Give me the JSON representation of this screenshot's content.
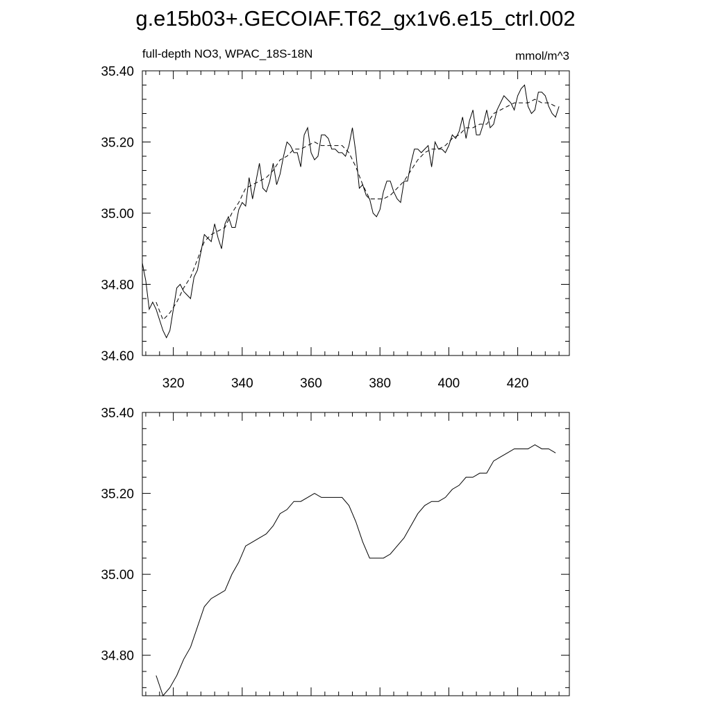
{
  "chart_data": [
    {
      "type": "line",
      "title": "g.e15b03+.GECOIAF.T62_gx1v6.e15_ctrl.002",
      "subtitle": "full-depth NO3, WPAC_18S-18N",
      "units": "mmol/m^3",
      "xlim": [
        311,
        435
      ],
      "ylim": [
        34.6,
        35.4
      ],
      "xticks": [
        320,
        340,
        360,
        380,
        400,
        420
      ],
      "xtick_labels": true,
      "yticks": [
        {
          "value": 34.6,
          "label": "34.60"
        },
        {
          "value": 34.8,
          "label": "34.80"
        },
        {
          "value": 35.0,
          "label": "35.00"
        },
        {
          "value": 35.2,
          "label": "35.20"
        },
        {
          "value": 35.4,
          "label": "35.40"
        }
      ],
      "series": [
        {
          "color": "#000000",
          "dash": false,
          "x": [
            311,
            312,
            313,
            314,
            315,
            316,
            317,
            318,
            319,
            320,
            321,
            322,
            323,
            324,
            325,
            326,
            327,
            328,
            329,
            330,
            331,
            332,
            333,
            334,
            335,
            336,
            337,
            338,
            339,
            340,
            341,
            342,
            343,
            344,
            345,
            346,
            347,
            348,
            349,
            350,
            351,
            352,
            353,
            354,
            355,
            356,
            357,
            358,
            359,
            360,
            361,
            362,
            363,
            364,
            365,
            366,
            367,
            368,
            369,
            370,
            371,
            372,
            373,
            374,
            375,
            376,
            377,
            378,
            379,
            380,
            381,
            382,
            383,
            384,
            385,
            386,
            387,
            388,
            389,
            390,
            391,
            392,
            393,
            394,
            395,
            396,
            397,
            398,
            399,
            400,
            401,
            402,
            403,
            404,
            405,
            406,
            407,
            408,
            409,
            410,
            411,
            412,
            413,
            414,
            415,
            416,
            417,
            418,
            419,
            420,
            421,
            422,
            423,
            424,
            425,
            426,
            427,
            428,
            429,
            430,
            431,
            432
          ],
          "values": [
            34.86,
            34.81,
            34.73,
            34.75,
            34.73,
            34.7,
            34.67,
            34.65,
            34.67,
            34.73,
            34.79,
            34.8,
            34.78,
            34.77,
            34.76,
            34.82,
            34.84,
            34.89,
            34.94,
            34.93,
            34.92,
            34.97,
            34.93,
            34.9,
            34.97,
            34.99,
            34.96,
            34.96,
            35.01,
            35.03,
            35.02,
            35.1,
            35.04,
            35.09,
            35.14,
            35.07,
            35.06,
            35.09,
            35.14,
            35.08,
            35.11,
            35.16,
            35.2,
            35.19,
            35.17,
            35.17,
            35.13,
            35.22,
            35.24,
            35.17,
            35.15,
            35.16,
            35.22,
            35.22,
            35.21,
            35.18,
            35.18,
            35.17,
            35.17,
            35.16,
            35.19,
            35.24,
            35.17,
            35.07,
            35.08,
            35.05,
            35.04,
            35.0,
            34.99,
            35.01,
            35.06,
            35.09,
            35.09,
            35.06,
            35.04,
            35.03,
            35.09,
            35.09,
            35.14,
            35.18,
            35.18,
            35.17,
            35.18,
            35.19,
            35.13,
            35.2,
            35.18,
            35.18,
            35.17,
            35.19,
            35.22,
            35.21,
            35.23,
            35.27,
            35.21,
            35.26,
            35.29,
            35.22,
            35.22,
            35.25,
            35.29,
            35.24,
            35.25,
            35.29,
            35.31,
            35.33,
            35.32,
            35.31,
            35.29,
            35.33,
            35.35,
            35.36,
            35.3,
            35.28,
            35.29,
            35.34,
            35.34,
            35.33,
            35.3,
            35.28,
            35.27,
            35.3
          ]
        },
        {
          "color": "#000000",
          "dash": true,
          "x": [
            315,
            317,
            319,
            321,
            323,
            325,
            327,
            329,
            331,
            333,
            335,
            337,
            339,
            341,
            343,
            345,
            347,
            349,
            351,
            353,
            355,
            357,
            359,
            361,
            363,
            365,
            367,
            369,
            371,
            373,
            375,
            377,
            379,
            381,
            383,
            385,
            387,
            389,
            391,
            393,
            395,
            397,
            399,
            401,
            403,
            405,
            407,
            409,
            411,
            413,
            415,
            417,
            419,
            421,
            423,
            425,
            427,
            429,
            431
          ],
          "values": [
            34.75,
            34.7,
            34.72,
            34.75,
            34.79,
            34.82,
            34.87,
            34.92,
            34.94,
            34.95,
            34.96,
            35.0,
            35.03,
            35.07,
            35.08,
            35.09,
            35.1,
            35.12,
            35.15,
            35.16,
            35.18,
            35.18,
            35.19,
            35.2,
            35.19,
            35.19,
            35.19,
            35.19,
            35.17,
            35.13,
            35.08,
            35.04,
            35.04,
            35.04,
            35.05,
            35.07,
            35.09,
            35.12,
            35.15,
            35.17,
            35.18,
            35.18,
            35.19,
            35.21,
            35.22,
            35.24,
            35.24,
            35.25,
            35.25,
            35.28,
            35.29,
            35.3,
            35.31,
            35.31,
            35.31,
            35.32,
            35.31,
            35.31,
            35.3
          ]
        }
      ]
    },
    {
      "type": "line",
      "xlim": [
        311,
        435
      ],
      "ylim": [
        34.7,
        35.4
      ],
      "xticks": [
        320,
        340,
        360,
        380,
        400,
        420
      ],
      "xtick_labels": false,
      "yticks": [
        {
          "value": 34.8,
          "label": "34.80"
        },
        {
          "value": 35.0,
          "label": "35.00"
        },
        {
          "value": 35.2,
          "label": "35.20"
        },
        {
          "value": 35.4,
          "label": "35.40"
        }
      ],
      "series": [
        {
          "color": "#000000",
          "dash": false,
          "x": [
            315,
            317,
            319,
            321,
            323,
            325,
            327,
            329,
            331,
            333,
            335,
            337,
            339,
            341,
            343,
            345,
            347,
            349,
            351,
            353,
            355,
            357,
            359,
            361,
            363,
            365,
            367,
            369,
            371,
            373,
            375,
            377,
            379,
            381,
            383,
            385,
            387,
            389,
            391,
            393,
            395,
            397,
            399,
            401,
            403,
            405,
            407,
            409,
            411,
            413,
            415,
            417,
            419,
            421,
            423,
            425,
            427,
            429,
            431
          ],
          "values": [
            34.75,
            34.7,
            34.72,
            34.75,
            34.79,
            34.82,
            34.87,
            34.92,
            34.94,
            34.95,
            34.96,
            35.0,
            35.03,
            35.07,
            35.08,
            35.09,
            35.1,
            35.12,
            35.15,
            35.16,
            35.18,
            35.18,
            35.19,
            35.2,
            35.19,
            35.19,
            35.19,
            35.19,
            35.17,
            35.13,
            35.08,
            35.04,
            35.04,
            35.04,
            35.05,
            35.07,
            35.09,
            35.12,
            35.15,
            35.17,
            35.18,
            35.18,
            35.19,
            35.21,
            35.22,
            35.24,
            35.24,
            35.25,
            35.25,
            35.28,
            35.29,
            35.3,
            35.31,
            35.31,
            35.31,
            35.32,
            35.31,
            35.31,
            35.3
          ]
        }
      ]
    }
  ]
}
